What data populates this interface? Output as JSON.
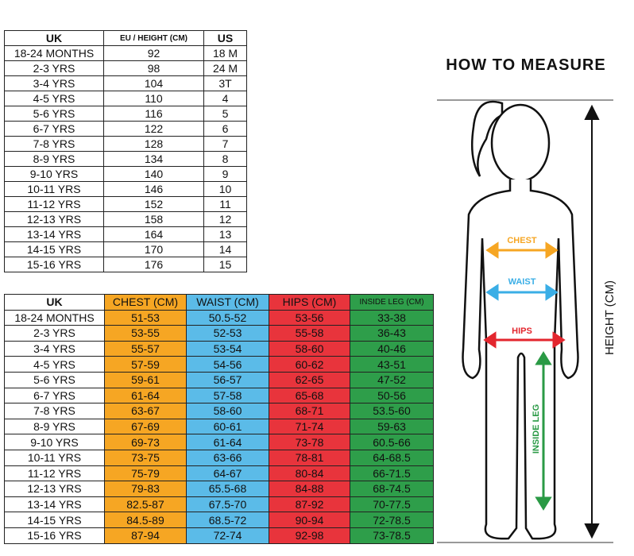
{
  "size_table": {
    "headers": [
      "UK",
      "EU / HEIGHT (CM)",
      "US"
    ],
    "rows": [
      [
        "18-24 MONTHS",
        "92",
        "18 M"
      ],
      [
        "2-3 YRS",
        "98",
        "24 M"
      ],
      [
        "3-4 YRS",
        "104",
        "3T"
      ],
      [
        "4-5 YRS",
        "110",
        "4"
      ],
      [
        "5-6 YRS",
        "116",
        "5"
      ],
      [
        "6-7 YRS",
        "122",
        "6"
      ],
      [
        "7-8 YRS",
        "128",
        "7"
      ],
      [
        "8-9 YRS",
        "134",
        "8"
      ],
      [
        "9-10 YRS",
        "140",
        "9"
      ],
      [
        "10-11 YRS",
        "146",
        "10"
      ],
      [
        "11-12 YRS",
        "152",
        "11"
      ],
      [
        "12-13 YRS",
        "158",
        "12"
      ],
      [
        "13-14 YRS",
        "164",
        "13"
      ],
      [
        "14-15 YRS",
        "170",
        "14"
      ],
      [
        "15-16 YRS",
        "176",
        "15"
      ]
    ]
  },
  "measure_table": {
    "headers": [
      "UK",
      "CHEST (CM)",
      "WAIST (CM)",
      "HIPS (CM)",
      "INSIDE LEG (CM)"
    ],
    "rows": [
      [
        "18-24 MONTHS",
        "51-53",
        "50.5-52",
        "53-56",
        "33-38"
      ],
      [
        "2-3 YRS",
        "53-55",
        "52-53",
        "55-58",
        "36-43"
      ],
      [
        "3-4 YRS",
        "55-57",
        "53-54",
        "58-60",
        "40-46"
      ],
      [
        "4-5 YRS",
        "57-59",
        "54-56",
        "60-62",
        "43-51"
      ],
      [
        "5-6 YRS",
        "59-61",
        "56-57",
        "62-65",
        "47-52"
      ],
      [
        "6-7 YRS",
        "61-64",
        "57-58",
        "65-68",
        "50-56"
      ],
      [
        "7-8 YRS",
        "63-67",
        "58-60",
        "68-71",
        "53.5-60"
      ],
      [
        "8-9 YRS",
        "67-69",
        "60-61",
        "71-74",
        "59-63"
      ],
      [
        "9-10 YRS",
        "69-73",
        "61-64",
        "73-78",
        "60.5-66"
      ],
      [
        "10-11 YRS",
        "73-75",
        "63-66",
        "78-81",
        "64-68.5"
      ],
      [
        "11-12 YRS",
        "75-79",
        "64-67",
        "80-84",
        "66-71.5"
      ],
      [
        "12-13 YRS",
        "79-83",
        "65.5-68",
        "84-88",
        "68-74.5"
      ],
      [
        "13-14 YRS",
        "82.5-87",
        "67.5-70",
        "87-92",
        "70-77.5"
      ],
      [
        "14-15 YRS",
        "84.5-89",
        "68.5-72",
        "90-94",
        "72-78.5"
      ],
      [
        "15-16 YRS",
        "87-94",
        "72-74",
        "92-98",
        "73-78.5"
      ]
    ]
  },
  "measure": {
    "title": "HOW TO MEASURE",
    "chest": "CHEST",
    "waist": "WAIST",
    "hips": "HIPS",
    "inside_leg": "INSIDE LEG",
    "height": "HEIGHT (CM)"
  }
}
